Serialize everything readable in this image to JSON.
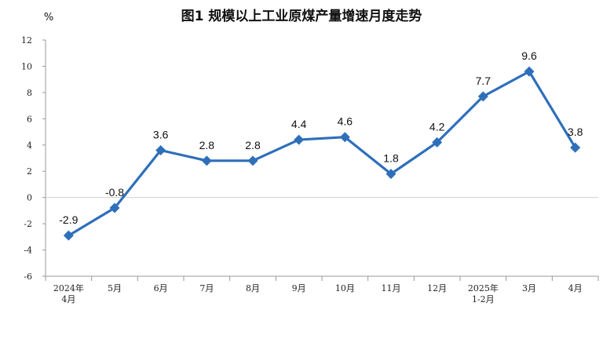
{
  "chart_data": {
    "type": "line",
    "title": "图1  规模以上工业原煤产量增速月度走势",
    "unit": "%",
    "categories": [
      [
        "2024年",
        "4月"
      ],
      [
        "5月"
      ],
      [
        "6月"
      ],
      [
        "7月"
      ],
      [
        "8月"
      ],
      [
        "9月"
      ],
      [
        "10月"
      ],
      [
        "11月"
      ],
      [
        "12月"
      ],
      [
        "2025年",
        "1-2月"
      ],
      [
        "3月"
      ],
      [
        "4月"
      ]
    ],
    "values": [
      -2.9,
      -0.8,
      3.6,
      2.8,
      2.8,
      4.4,
      4.6,
      1.8,
      4.2,
      7.7,
      9.6,
      3.8
    ],
    "ylim": [
      -6,
      12
    ],
    "yticks": [
      -6,
      -4,
      -2,
      0,
      2,
      4,
      6,
      8,
      10,
      12
    ],
    "line_color": "#2e6fba",
    "grid": false
  }
}
